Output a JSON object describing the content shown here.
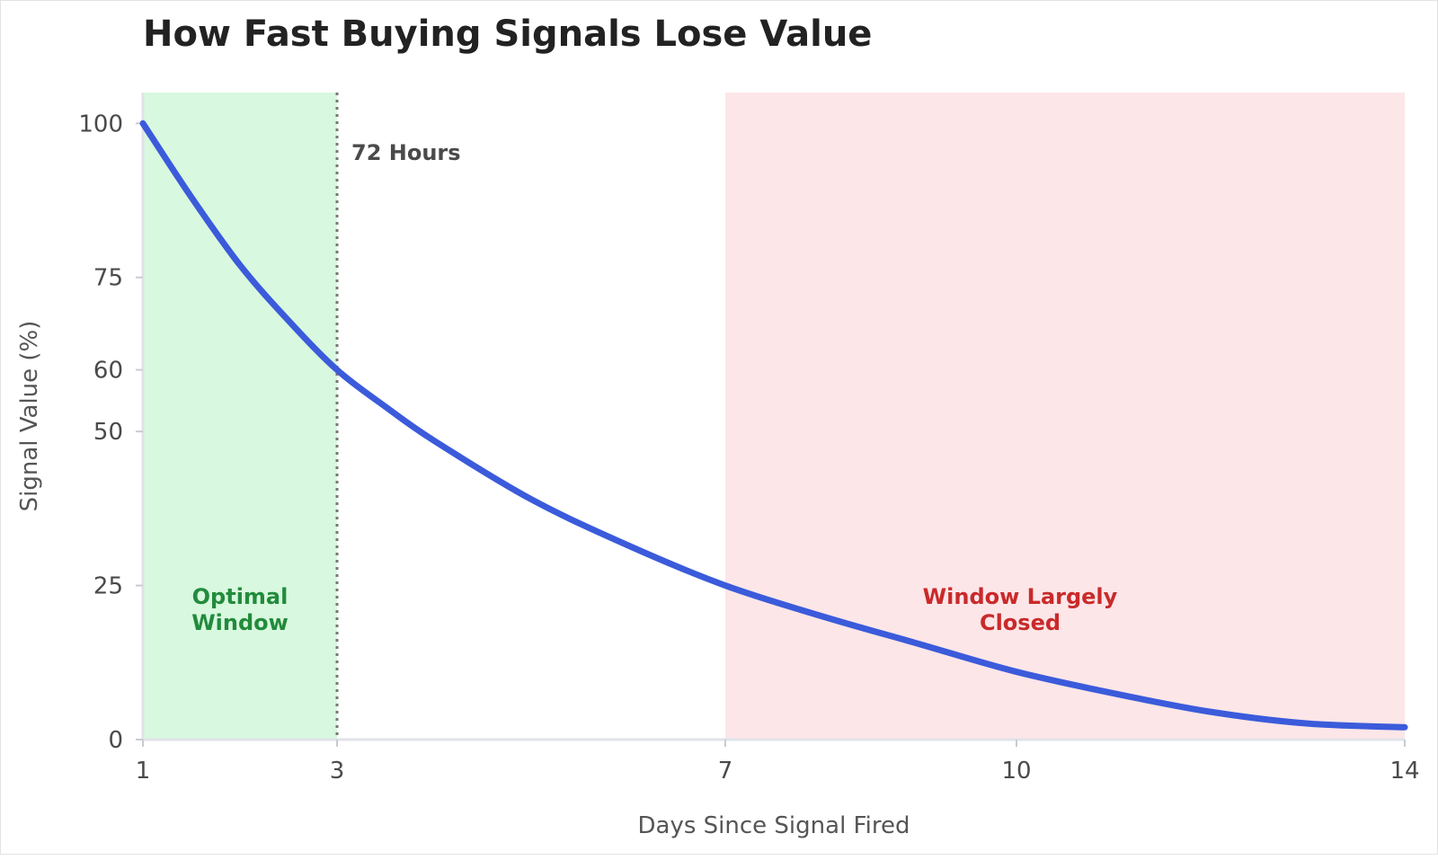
{
  "chart_data": {
    "type": "line",
    "title": "How Fast Buying Signals Lose Value",
    "xlabel": "Days Since Signal Fired",
    "ylabel": "Signal Value (%)",
    "xlim": [
      1,
      14
    ],
    "ylim": [
      0,
      105
    ],
    "x_ticks": [
      1,
      3,
      7,
      10,
      14
    ],
    "y_ticks": [
      0,
      25,
      50,
      60,
      75,
      100
    ],
    "grid": false,
    "series": [
      {
        "color": "#3b5bdb",
        "x": [
          1,
          1.5,
          2,
          2.5,
          3,
          3.5,
          4,
          5,
          6,
          7,
          8,
          9,
          10,
          11,
          12,
          13,
          14
        ],
        "y": [
          100,
          88,
          77,
          68,
          60,
          54,
          48.5,
          39,
          31.5,
          25,
          20,
          15.5,
          11,
          7.5,
          4.5,
          2.6,
          2
        ]
      }
    ],
    "shaded_regions": [
      {
        "x_start": 1,
        "x_end": 3,
        "color": "#d8f8df",
        "label": "Optimal\nWindow",
        "label_color": "#228b3c"
      },
      {
        "x_start": 7,
        "x_end": 14,
        "color": "#fde6e8",
        "label": "Window Largely\nClosed",
        "label_color": "#c92a2a"
      }
    ],
    "vline": {
      "x": 3,
      "label": "72 Hours",
      "color": "#777777"
    }
  }
}
